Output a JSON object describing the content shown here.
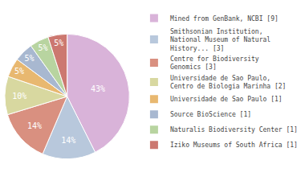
{
  "chart_data": {
    "type": "pie",
    "categories": [
      "Mined from GenBank, NCBI [9]",
      "Smithsonian Institution,\nNational Museum of Natural\nHistory... [3]",
      "Centre for Biodiversity\nGenomics [3]",
      "Universidade de Sao Paulo,\nCentro de Biologia Marinha [2]",
      "Universidade de Sao Paulo [1]",
      "Source BioScience [1]",
      "Naturalis Biodiversity Center [1]",
      "Iziko Museums of South Africa [1]"
    ],
    "values": [
      43,
      14,
      14,
      10,
      5,
      5,
      5,
      5
    ],
    "value_labels": [
      "43%",
      "14%",
      "14%",
      "10%",
      "5%",
      "5%",
      "5%",
      "5%"
    ],
    "colors": [
      "#d9b3d9",
      "#b8c8dc",
      "#d99080",
      "#d8d8a0",
      "#e8b870",
      "#a8b8d0",
      "#b8d4a0",
      "#cc7870"
    ],
    "data_labels": true,
    "legend": "right"
  }
}
